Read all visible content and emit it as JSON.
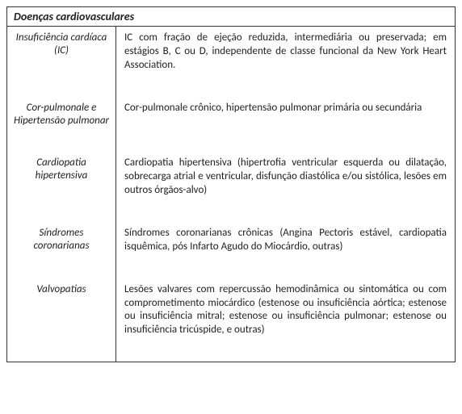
{
  "table": {
    "title": "Doenças cardiovasculares",
    "rows": [
      {
        "term": "Insuficiência cardíaca (IC)",
        "desc": "IC com fração de ejeção reduzida, intermediária ou preservada; em estágios B, C ou D, independente de classe funcional da New York Heart Association."
      },
      {
        "term": "Cor-pulmonale e Hipertensão pulmonar",
        "desc": "Cor-pulmonale crônico, hipertensão pulmonar primária ou secundária"
      },
      {
        "term": "Cardiopatia hipertensiva",
        "desc": "Cardiopatia hipertensiva (hipertrofia ventricular esquerda ou dilatação, sobrecarga atrial e ventricular, disfunção diastólica e/ou sistólica, lesões em outros órgãos-alvo)"
      },
      {
        "term": "Síndromes coronarianas",
        "desc": "Síndromes coronarianas crônicas (Angina Pectoris estável, cardiopatia isquêmica, pós Infarto Agudo do Miocárdio, outras)"
      },
      {
        "term": "Valvopatias",
        "desc": "Lesões valvares com repercussão hemodinâmica ou sintomática ou com comprometimento miocárdico (estenose ou insuficiência aórtica; estenose ou insuficiência mitral; estenose ou insuficiência pulmonar; estenose ou insuficiência tricúspide, e outras)"
      }
    ]
  }
}
